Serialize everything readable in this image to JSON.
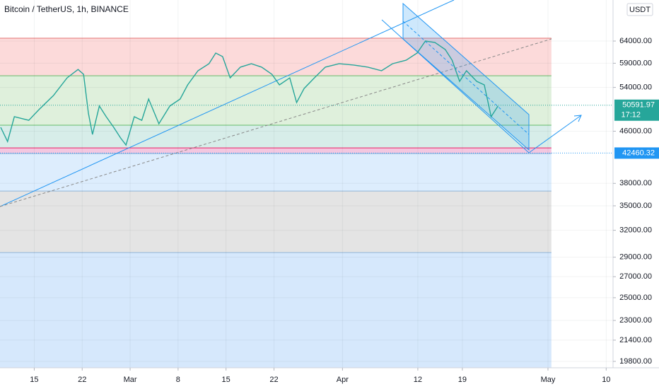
{
  "chart_data": {
    "type": "line",
    "title": "Bitcoin / TetherUS, 1h, BINANCE",
    "currency": "USDT",
    "log": true,
    "x": [
      10.1,
      11.1,
      12.1,
      14.2,
      15.7,
      17.8,
      19.8,
      21.4,
      22.2,
      22.9,
      23.5,
      24.5,
      25.5,
      26.6,
      27.6,
      28.4,
      29.6,
      30.7,
      31.7,
      33.2,
      34.8,
      36.3,
      37.4,
      38.9,
      40.5,
      41.5,
      42.5,
      43.6,
      45.1,
      46.7,
      48.2,
      49.7,
      50.8,
      52.3,
      53.3,
      54.4,
      55.9,
      57.5,
      59.5,
      61.6,
      63.7,
      65.7,
      67.3,
      69.3,
      70.9,
      72.1,
      73.5,
      75.0,
      76.0,
      77.1,
      78.1,
      79.6,
      80.7,
      81.7,
      82.7
    ],
    "series": [
      {
        "color": "#26a69a",
        "values": [
          46660,
          44290,
          48510,
          47870,
          49790,
          52430,
          55930,
          57680,
          56650,
          49150,
          45460,
          50440,
          48510,
          46660,
          44880,
          43720,
          48510,
          47870,
          51760,
          47270,
          50440,
          51760,
          54510,
          57400,
          58900,
          61240,
          60460,
          55930,
          58170,
          58900,
          58170,
          56650,
          54510,
          55930,
          51090,
          53790,
          55930,
          58170,
          58900,
          58620,
          58170,
          57400,
          58900,
          59660,
          61240,
          64000,
          63670,
          62040,
          59660,
          55220,
          57400,
          55220,
          54510,
          48510,
          50440
        ]
      }
    ],
    "xlim": [
      10,
      99.5
    ],
    "ylim": [
      19340,
      74380
    ],
    "xticks": [
      {
        "value": 15,
        "label": "15"
      },
      {
        "value": 22,
        "label": "22"
      },
      {
        "value": 29,
        "label": "Mar"
      },
      {
        "value": 36,
        "label": "8"
      },
      {
        "value": 43,
        "label": "15"
      },
      {
        "value": 50,
        "label": "22"
      },
      {
        "value": 60,
        "label": "Apr"
      },
      {
        "value": 71,
        "label": "12"
      },
      {
        "value": 77.5,
        "label": "19"
      },
      {
        "value": 90,
        "label": "May"
      },
      {
        "value": 98.5,
        "label": "10"
      }
    ],
    "yticks": [
      {
        "value": 64000,
        "label": "64000.00"
      },
      {
        "value": 59000,
        "label": "59000.00"
      },
      {
        "value": 54000,
        "label": "54000.00"
      },
      {
        "value": 46000,
        "label": "46000.00"
      },
      {
        "value": 38000,
        "label": "38000.00"
      },
      {
        "value": 35000,
        "label": "35000.00"
      },
      {
        "value": 32000,
        "label": "32000.00"
      },
      {
        "value": 29000,
        "label": "29000.00"
      },
      {
        "value": 27000,
        "label": "27000.00"
      },
      {
        "value": 25000,
        "label": "25000.00"
      },
      {
        "value": 23000,
        "label": "23000.00"
      },
      {
        "value": 21400,
        "label": "21400.00"
      },
      {
        "value": 19800,
        "label": "19800.00"
      }
    ],
    "zone_end": 90.5,
    "zones": [
      {
        "from": 64670,
        "to": 56360,
        "color": "#fcdada",
        "border": "#e57373"
      },
      {
        "from": 56360,
        "to": 47030,
        "color": "#dff0dc",
        "border": "#66bb6a"
      },
      {
        "from": 47030,
        "to": 43270,
        "color": "#d7ede9",
        "border": "#66bb6a"
      },
      {
        "from": 43270,
        "to": 42380,
        "color": "#f3c7e0",
        "border": "#e91e63"
      },
      {
        "from": 42380,
        "to": 36950,
        "color": "#ddedfd",
        "border": "#90b4d8"
      },
      {
        "from": 36950,
        "to": 29490,
        "color": "#e4e4e4",
        "border": "#90b4d8"
      },
      {
        "from": 29490,
        "to": 19340,
        "color": "#d6e8fc",
        "border": "#90b4d8"
      }
    ],
    "price_labels": [
      {
        "value": 50591.97,
        "color": "#26a69a",
        "countdown": "17:12"
      },
      {
        "value": 42460.32,
        "color": "#2196f3"
      }
    ]
  }
}
